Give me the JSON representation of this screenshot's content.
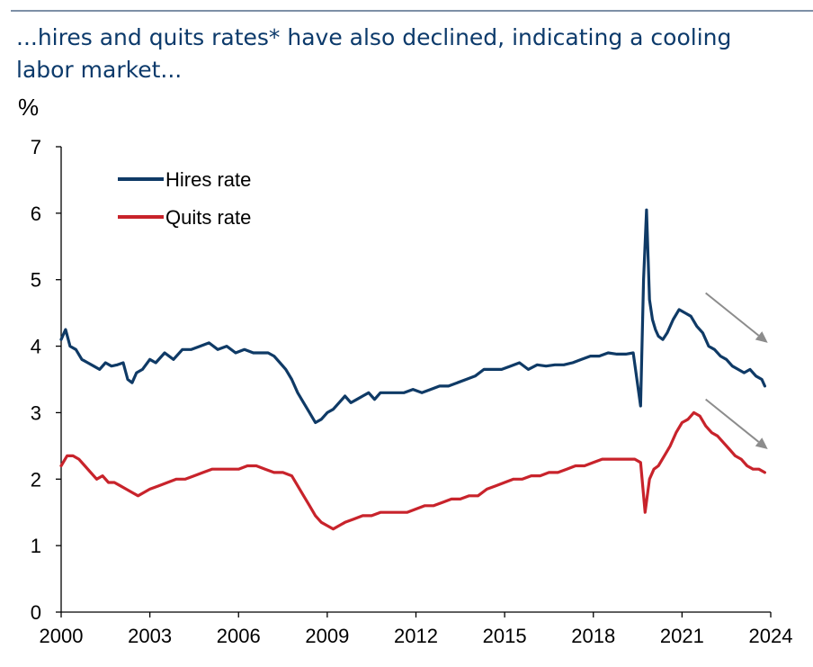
{
  "header": {
    "title": "...hires and quits rates* have also declined, indicating a cooling labor market...",
    "unit": "%"
  },
  "colors": {
    "hires": "#0f3a66",
    "quits": "#c8232b",
    "arrow": "#8c8c8c",
    "axis": "#000000"
  },
  "chart_data": {
    "type": "line",
    "title": "...hires and quits rates* have also declined, indicating a cooling labor market...",
    "ylabel": "%",
    "xlim": [
      2000,
      2024
    ],
    "ylim": [
      0,
      7
    ],
    "x_ticks": [
      2000,
      2003,
      2006,
      2009,
      2012,
      2015,
      2018,
      2021,
      2024
    ],
    "y_ticks": [
      0,
      1,
      2,
      3,
      4,
      5,
      6,
      7
    ],
    "grid": false,
    "legend_position": "top-left",
    "annotations": [
      "downward arrow near hires rate (2023)",
      "downward arrow near quits rate (2023)"
    ],
    "series": [
      {
        "name": "Hires rate",
        "color": "#0f3a66",
        "x": [
          2000.0,
          2000.15,
          2000.3,
          2000.5,
          2000.7,
          2000.9,
          2001.1,
          2001.3,
          2001.5,
          2001.7,
          2001.9,
          2002.1,
          2002.25,
          2002.4,
          2002.55,
          2002.75,
          2003.0,
          2003.2,
          2003.5,
          2003.8,
          2004.1,
          2004.4,
          2004.7,
          2005.0,
          2005.3,
          2005.6,
          2005.9,
          2006.2,
          2006.5,
          2006.8,
          2007.0,
          2007.2,
          2007.4,
          2007.6,
          2007.8,
          2008.0,
          2008.2,
          2008.4,
          2008.6,
          2008.8,
          2009.0,
          2009.2,
          2009.4,
          2009.6,
          2009.8,
          2010.0,
          2010.2,
          2010.4,
          2010.6,
          2010.8,
          2011.0,
          2011.3,
          2011.6,
          2011.9,
          2012.2,
          2012.5,
          2012.8,
          2013.1,
          2013.4,
          2013.7,
          2014.0,
          2014.3,
          2014.6,
          2014.9,
          2015.2,
          2015.5,
          2015.8,
          2016.1,
          2016.4,
          2016.7,
          2017.0,
          2017.3,
          2017.6,
          2017.9,
          2018.2,
          2018.5,
          2018.8,
          2019.1,
          2019.35,
          2019.6,
          2019.7,
          2019.8,
          2019.9,
          2020.0,
          2020.1,
          2020.2,
          2020.35,
          2020.5,
          2020.7,
          2020.9,
          2021.1,
          2021.3,
          2021.5,
          2021.7,
          2021.9,
          2022.1,
          2022.3,
          2022.5,
          2022.7,
          2022.9,
          2023.1,
          2023.3,
          2023.5,
          2023.7,
          2023.8
        ],
        "values": [
          4.1,
          4.25,
          4.0,
          3.95,
          3.8,
          3.75,
          3.7,
          3.65,
          3.75,
          3.7,
          3.72,
          3.75,
          3.5,
          3.45,
          3.6,
          3.65,
          3.8,
          3.75,
          3.9,
          3.8,
          3.95,
          3.95,
          4.0,
          4.05,
          3.95,
          4.0,
          3.9,
          3.95,
          3.9,
          3.9,
          3.9,
          3.85,
          3.75,
          3.65,
          3.5,
          3.3,
          3.15,
          3.0,
          2.85,
          2.9,
          3.0,
          3.05,
          3.15,
          3.25,
          3.15,
          3.2,
          3.25,
          3.3,
          3.2,
          3.3,
          3.3,
          3.3,
          3.3,
          3.35,
          3.3,
          3.35,
          3.4,
          3.4,
          3.45,
          3.5,
          3.55,
          3.65,
          3.65,
          3.65,
          3.7,
          3.75,
          3.65,
          3.72,
          3.7,
          3.72,
          3.72,
          3.75,
          3.8,
          3.85,
          3.85,
          3.9,
          3.88,
          3.88,
          3.9,
          3.1,
          5.0,
          6.05,
          4.7,
          4.4,
          4.25,
          4.15,
          4.1,
          4.2,
          4.4,
          4.55,
          4.5,
          4.45,
          4.3,
          4.2,
          4.0,
          3.95,
          3.85,
          3.8,
          3.7,
          3.65,
          3.6,
          3.65,
          3.55,
          3.5,
          3.4
        ]
      },
      {
        "name": "Quits rate",
        "color": "#c8232b",
        "x": [
          2000.0,
          2000.2,
          2000.4,
          2000.6,
          2000.8,
          2001.0,
          2001.2,
          2001.4,
          2001.6,
          2001.8,
          2002.0,
          2002.2,
          2002.4,
          2002.6,
          2002.8,
          2003.0,
          2003.3,
          2003.6,
          2003.9,
          2004.2,
          2004.5,
          2004.8,
          2005.1,
          2005.4,
          2005.7,
          2006.0,
          2006.3,
          2006.6,
          2006.9,
          2007.2,
          2007.5,
          2007.8,
          2008.0,
          2008.2,
          2008.4,
          2008.6,
          2008.8,
          2009.0,
          2009.2,
          2009.4,
          2009.6,
          2009.9,
          2010.2,
          2010.5,
          2010.8,
          2011.1,
          2011.4,
          2011.7,
          2012.0,
          2012.3,
          2012.6,
          2012.9,
          2013.2,
          2013.5,
          2013.8,
          2014.1,
          2014.4,
          2014.7,
          2015.0,
          2015.3,
          2015.6,
          2015.9,
          2016.2,
          2016.5,
          2016.8,
          2017.1,
          2017.4,
          2017.7,
          2018.0,
          2018.3,
          2018.6,
          2018.9,
          2019.2,
          2019.4,
          2019.6,
          2019.75,
          2019.9,
          2020.05,
          2020.2,
          2020.4,
          2020.6,
          2020.8,
          2021.0,
          2021.2,
          2021.4,
          2021.6,
          2021.8,
          2022.0,
          2022.2,
          2022.4,
          2022.6,
          2022.8,
          2023.0,
          2023.2,
          2023.4,
          2023.6,
          2023.8
        ],
        "values": [
          2.2,
          2.35,
          2.35,
          2.3,
          2.2,
          2.1,
          2.0,
          2.05,
          1.95,
          1.95,
          1.9,
          1.85,
          1.8,
          1.75,
          1.8,
          1.85,
          1.9,
          1.95,
          2.0,
          2.0,
          2.05,
          2.1,
          2.15,
          2.15,
          2.15,
          2.15,
          2.2,
          2.2,
          2.15,
          2.1,
          2.1,
          2.05,
          1.9,
          1.75,
          1.6,
          1.45,
          1.35,
          1.3,
          1.25,
          1.3,
          1.35,
          1.4,
          1.45,
          1.45,
          1.5,
          1.5,
          1.5,
          1.5,
          1.55,
          1.6,
          1.6,
          1.65,
          1.7,
          1.7,
          1.75,
          1.75,
          1.85,
          1.9,
          1.95,
          2.0,
          2.0,
          2.05,
          2.05,
          2.1,
          2.1,
          2.15,
          2.2,
          2.2,
          2.25,
          2.3,
          2.3,
          2.3,
          2.3,
          2.3,
          2.25,
          1.5,
          2.0,
          2.15,
          2.2,
          2.35,
          2.5,
          2.7,
          2.85,
          2.9,
          3.0,
          2.95,
          2.8,
          2.7,
          2.65,
          2.55,
          2.45,
          2.35,
          2.3,
          2.2,
          2.15,
          2.15,
          2.1
        ]
      }
    ],
    "legend": [
      "Hires rate",
      "Quits rate"
    ]
  }
}
